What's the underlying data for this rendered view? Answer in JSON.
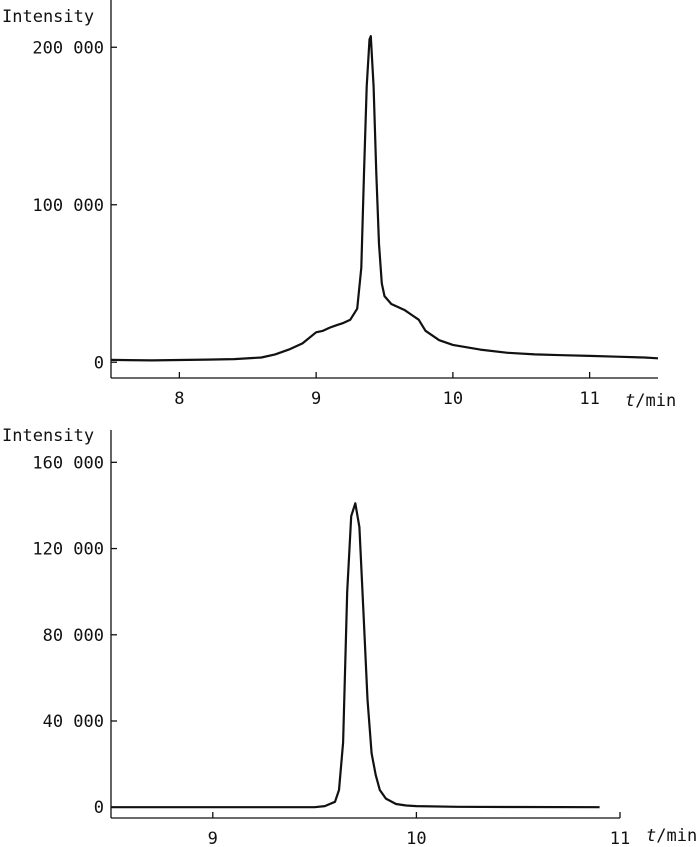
{
  "chart_data": [
    {
      "type": "line",
      "ylabel": "Intensity",
      "xlabel_var": "t",
      "xlabel_unit": "/min",
      "xlim": [
        7.5,
        11.5
      ],
      "ylim": [
        -10000,
        230000
      ],
      "x_ticks": [
        8,
        9,
        10,
        11
      ],
      "y_ticks": [
        0,
        100000,
        200000
      ],
      "x_tick_labels": [
        "8",
        "9",
        "10",
        "11"
      ],
      "y_tick_labels": [
        "0",
        "100 000",
        "200 000"
      ],
      "grid": false,
      "legend": "none",
      "series": [
        {
          "x": [
            7.5,
            7.8,
            8.0,
            8.2,
            8.4,
            8.6,
            8.7,
            8.8,
            8.9,
            9.0,
            9.05,
            9.1,
            9.15,
            9.2,
            9.25,
            9.3,
            9.33,
            9.35,
            9.37,
            9.39,
            9.4,
            9.42,
            9.44,
            9.46,
            9.48,
            9.5,
            9.55,
            9.6,
            9.65,
            9.7,
            9.75,
            9.8,
            9.9,
            10.0,
            10.2,
            10.4,
            10.6,
            10.8,
            11.0,
            11.2,
            11.4,
            11.5
          ],
          "y": [
            1500,
            1200,
            1400,
            1700,
            2000,
            3000,
            5000,
            8000,
            12000,
            19000,
            20000,
            22000,
            23500,
            25000,
            27000,
            34000,
            60000,
            120000,
            175000,
            205000,
            207000,
            175000,
            120000,
            75000,
            50000,
            42000,
            37000,
            35000,
            33000,
            30000,
            27000,
            20000,
            14000,
            11000,
            8000,
            6000,
            5000,
            4500,
            4000,
            3500,
            3000,
            2500
          ]
        }
      ]
    },
    {
      "type": "line",
      "ylabel": "Intensity",
      "xlabel_var": "t",
      "xlabel_unit": "/min",
      "xlim": [
        8.5,
        11.0
      ],
      "ylim": [
        -5000,
        175000
      ],
      "x_ticks": [
        9,
        10,
        11
      ],
      "y_ticks": [
        0,
        40000,
        80000,
        120000,
        160000
      ],
      "x_tick_labels": [
        "9",
        "10",
        "11"
      ],
      "y_tick_labels": [
        "0",
        "40 000",
        "80 000",
        "120 000",
        "160 000"
      ],
      "grid": false,
      "legend": "none",
      "series": [
        {
          "x": [
            8.5,
            9.0,
            9.5,
            9.55,
            9.6,
            9.62,
            9.64,
            9.66,
            9.68,
            9.7,
            9.72,
            9.74,
            9.76,
            9.78,
            9.8,
            9.82,
            9.85,
            9.9,
            9.95,
            10.0,
            10.2,
            10.5,
            10.9
          ],
          "y": [
            0,
            0,
            0,
            500,
            2500,
            8000,
            30000,
            100000,
            135000,
            141000,
            130000,
            90000,
            50000,
            25000,
            15000,
            8000,
            4000,
            1500,
            800,
            500,
            200,
            100,
            0
          ]
        }
      ]
    }
  ]
}
